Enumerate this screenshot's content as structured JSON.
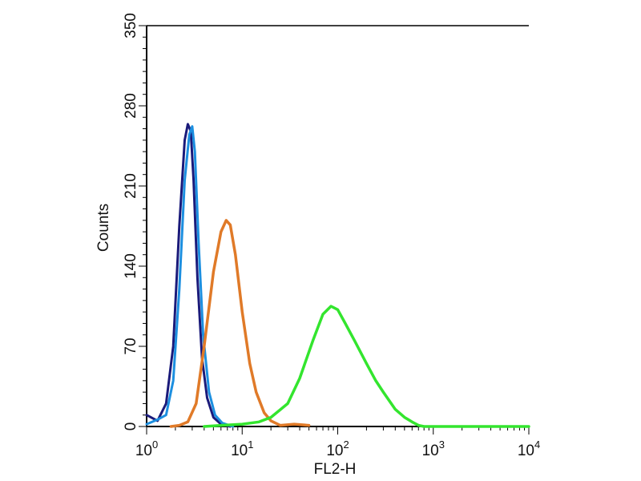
{
  "chart_data": {
    "type": "line",
    "title": "",
    "xlabel": "FL2-H",
    "ylabel": "Counts",
    "x_scale": "log",
    "xlim": [
      1,
      10000
    ],
    "ylim": [
      0,
      350
    ],
    "x_ticks": [
      {
        "value": 1,
        "base": "10",
        "exp": "0"
      },
      {
        "value": 10,
        "base": "10",
        "exp": "1"
      },
      {
        "value": 100,
        "base": "10",
        "exp": "2"
      },
      {
        "value": 1000,
        "base": "10",
        "exp": "3"
      },
      {
        "value": 10000,
        "base": "10",
        "exp": "4"
      }
    ],
    "y_ticks": [
      {
        "value": 0,
        "label": "0"
      },
      {
        "value": 70,
        "label": "70"
      },
      {
        "value": 140,
        "label": "140"
      },
      {
        "value": 210,
        "label": "210"
      },
      {
        "value": 280,
        "label": "280"
      },
      {
        "value": 350,
        "label": "350"
      }
    ],
    "grid": false,
    "legend": "none",
    "series": [
      {
        "color": "#1a1a7a",
        "x": [
          1.0,
          1.3,
          1.6,
          1.9,
          2.2,
          2.5,
          2.7,
          2.9,
          3.1,
          3.4,
          3.8,
          4.3,
          5.0,
          6.0,
          7.5
        ],
        "y": [
          10,
          5,
          20,
          70,
          175,
          250,
          264,
          258,
          215,
          130,
          60,
          25,
          8,
          2,
          0
        ]
      },
      {
        "color": "#1c8fe0",
        "x": [
          1.0,
          1.3,
          1.6,
          1.9,
          2.2,
          2.5,
          2.8,
          3.0,
          3.2,
          3.5,
          3.9,
          4.5,
          5.2,
          6.2,
          8.0
        ],
        "y": [
          2,
          6,
          10,
          40,
          120,
          215,
          255,
          262,
          240,
          160,
          80,
          30,
          10,
          3,
          0
        ]
      },
      {
        "color": "#e07a28",
        "x": [
          1.8,
          2.2,
          2.7,
          3.3,
          4.0,
          5.0,
          6.0,
          6.8,
          7.5,
          8.5,
          10.0,
          12.0,
          14.0,
          17.0,
          20.0,
          25.0,
          35.0,
          50.0
        ],
        "y": [
          0,
          1,
          4,
          20,
          70,
          135,
          170,
          180,
          176,
          150,
          100,
          55,
          30,
          12,
          5,
          1,
          2,
          1
        ]
      },
      {
        "color": "#33e52e",
        "x": [
          4,
          6,
          10,
          15,
          20,
          30,
          40,
          55,
          70,
          85,
          100,
          120,
          150,
          200,
          250,
          300,
          400,
          500,
          600,
          700,
          800,
          1000,
          2000,
          10000
        ],
        "y": [
          0,
          1,
          2,
          4,
          8,
          20,
          42,
          75,
          98,
          105,
          102,
          90,
          75,
          55,
          40,
          30,
          15,
          8,
          4,
          1,
          0,
          0,
          0,
          0
        ]
      }
    ]
  }
}
